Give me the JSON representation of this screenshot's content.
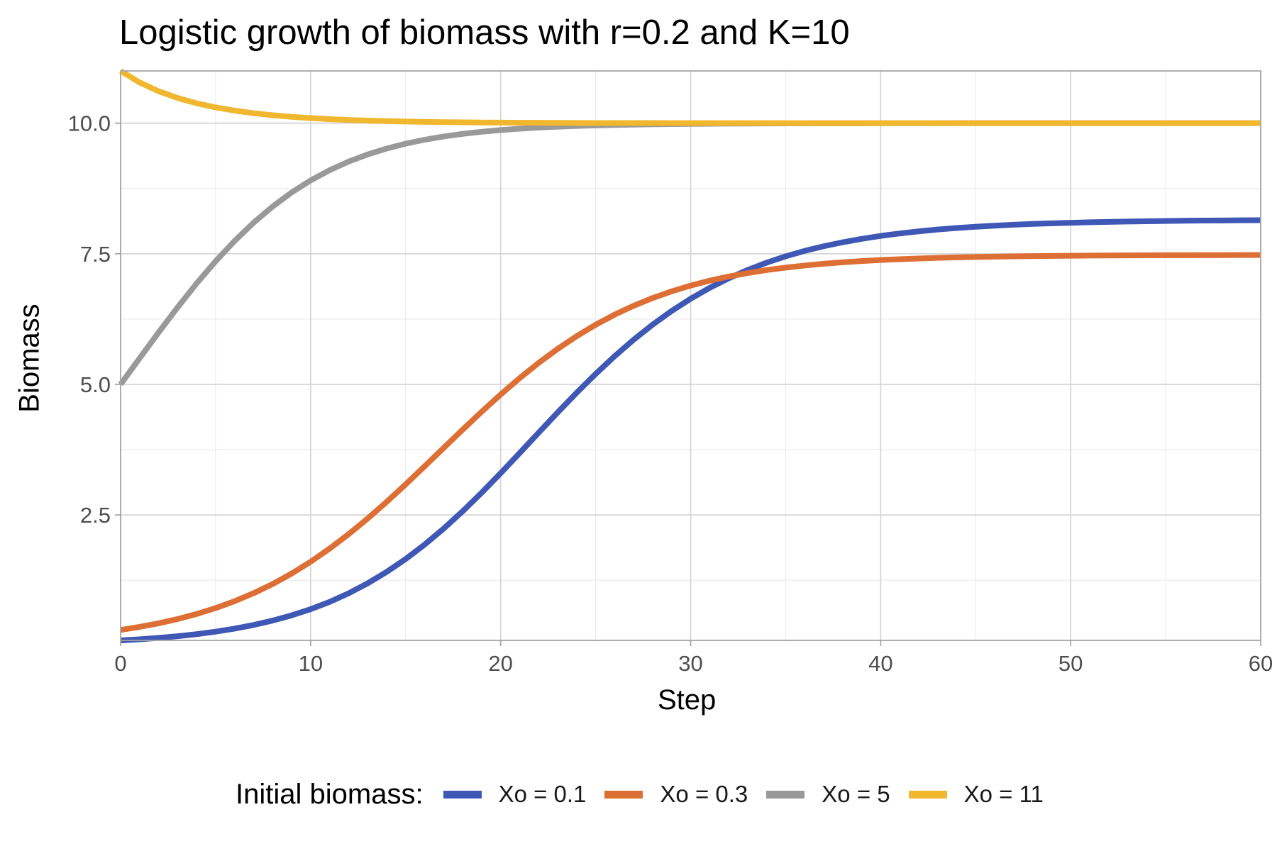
{
  "chart_data": {
    "type": "line",
    "title": "Logistic growth of biomass with r=0.2 and K=10",
    "xlabel": "Step",
    "ylabel": "Biomass",
    "xlim": [
      0,
      60
    ],
    "ylim": [
      0.1,
      11
    ],
    "x_ticks": [
      0,
      10,
      20,
      30,
      40,
      50,
      60
    ],
    "x_tick_labels": [
      "0",
      "10",
      "20",
      "30",
      "40",
      "50",
      "60"
    ],
    "y_ticks": [
      2.5,
      5.0,
      7.5,
      10.0
    ],
    "y_tick_labels": [
      "2.5",
      "5.0",
      "7.5",
      "10.0"
    ],
    "grid": true,
    "legend": {
      "title": "Initial biomass:",
      "position": "bottom"
    },
    "x": [
      0,
      1,
      2,
      3,
      4,
      5,
      6,
      7,
      8,
      9,
      10,
      11,
      12,
      13,
      14,
      15,
      16,
      17,
      18,
      19,
      20,
      21,
      22,
      23,
      24,
      25,
      26,
      27,
      28,
      29,
      30,
      31,
      32,
      33,
      34,
      35,
      36,
      37,
      38,
      39,
      40,
      41,
      42,
      43,
      44,
      45,
      46,
      47,
      48,
      49,
      50,
      51,
      52,
      53,
      54,
      55,
      56,
      57,
      58,
      59,
      60
    ],
    "series": [
      {
        "name": "Xo = 0.1",
        "color": "#3f57b5",
        "values": [
          0.1,
          0.12,
          0.147,
          0.18,
          0.219,
          0.267,
          0.325,
          0.395,
          0.479,
          0.579,
          0.697,
          0.837,
          1.001,
          1.192,
          1.41,
          1.657,
          1.934,
          2.239,
          2.571,
          2.926,
          3.3,
          3.685,
          4.075,
          4.462,
          4.839,
          5.2,
          5.54,
          5.855,
          6.144,
          6.405,
          6.639,
          6.847,
          7.03,
          7.19,
          7.33,
          7.451,
          7.555,
          7.644,
          7.72,
          7.786,
          7.842,
          7.889,
          7.929,
          7.964,
          7.993,
          8.017,
          8.038,
          8.056,
          8.071,
          8.083,
          8.094,
          8.103,
          8.111,
          8.118,
          8.123,
          8.128,
          8.132,
          8.135,
          8.138,
          8.141,
          8.143
        ]
      },
      {
        "name": "Xo = 0.3",
        "color": "#dd6e34",
        "values": [
          0.3,
          0.358,
          0.427,
          0.508,
          0.605,
          0.718,
          0.85,
          1.003,
          1.178,
          1.379,
          1.605,
          1.857,
          2.133,
          2.432,
          2.751,
          3.086,
          3.432,
          3.783,
          4.133,
          4.476,
          4.806,
          5.119,
          5.411,
          5.679,
          5.923,
          6.141,
          6.335,
          6.505,
          6.653,
          6.781,
          6.891,
          6.985,
          7.064,
          7.131,
          7.188,
          7.235,
          7.275,
          7.309,
          7.337,
          7.36,
          7.38,
          7.396,
          7.41,
          7.421,
          7.431,
          7.439,
          7.445,
          7.451,
          7.455,
          7.459,
          7.462,
          7.465,
          7.467,
          7.469,
          7.471,
          7.472,
          7.473,
          7.474,
          7.475,
          7.476,
          7.476
        ]
      },
      {
        "name": "Xo = 5",
        "color": "#999999",
        "values": [
          5.0,
          5.5,
          5.995,
          6.475,
          6.932,
          7.357,
          7.746,
          8.095,
          8.404,
          8.673,
          8.904,
          9.1,
          9.264,
          9.401,
          9.514,
          9.607,
          9.683,
          9.745,
          9.795,
          9.835,
          9.868,
          9.894,
          9.915,
          9.932,
          9.946,
          9.957,
          9.965,
          9.972,
          9.978,
          9.982,
          9.986,
          9.989,
          9.991,
          9.993,
          9.994,
          9.995,
          9.996,
          9.997,
          9.998,
          9.998,
          9.999,
          9.999,
          9.999,
          9.999,
          10.0,
          10.0,
          10.0,
          10.0,
          10.0,
          10.0,
          10.0,
          10.0,
          10.0,
          10.0,
          10.0,
          10.0,
          10.0,
          10.0,
          10.0,
          10.0,
          10.0
        ]
      },
      {
        "name": "Xo = 11",
        "color": "#f0b72f",
        "values": [
          11.0,
          10.78,
          10.612,
          10.482,
          10.381,
          10.302,
          10.24,
          10.191,
          10.152,
          10.121,
          10.097,
          10.077,
          10.061,
          10.049,
          10.039,
          10.031,
          10.025,
          10.02,
          10.016,
          10.013,
          10.01,
          10.008,
          10.007,
          10.005,
          10.004,
          10.003,
          10.003,
          10.002,
          10.002,
          10.001,
          10.001,
          10.001,
          10.001,
          10.001,
          10.0,
          10.0,
          10.0,
          10.0,
          10.0,
          10.0,
          10.0,
          10.0,
          10.0,
          10.0,
          10.0,
          10.0,
          10.0,
          10.0,
          10.0,
          10.0,
          10.0,
          10.0,
          10.0,
          10.0,
          10.0,
          10.0,
          10.0,
          10.0,
          10.0,
          10.0,
          10.0
        ]
      }
    ]
  }
}
